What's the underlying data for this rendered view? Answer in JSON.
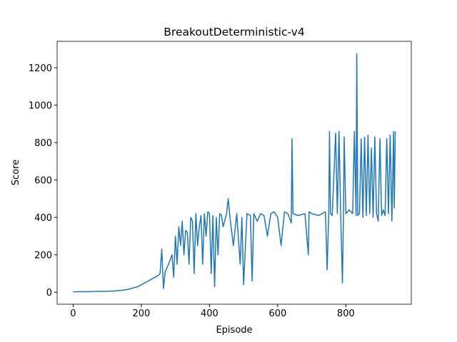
{
  "chart_data": {
    "type": "line",
    "title": "BreakoutDeterministic-v4",
    "x_label": "Episode",
    "y_label": "Score",
    "x": [
      0,
      20,
      40,
      60,
      80,
      100,
      120,
      140,
      160,
      170,
      180,
      190,
      200,
      210,
      220,
      230,
      240,
      250,
      255,
      260,
      265,
      270,
      280,
      290,
      295,
      300,
      305,
      310,
      315,
      320,
      325,
      330,
      335,
      340,
      345,
      350,
      355,
      360,
      365,
      370,
      375,
      380,
      385,
      390,
      395,
      400,
      405,
      410,
      415,
      420,
      425,
      430,
      435,
      440,
      450,
      455,
      460,
      470,
      480,
      490,
      495,
      500,
      510,
      520,
      525,
      530,
      540,
      550,
      560,
      570,
      580,
      590,
      600,
      610,
      620,
      630,
      640,
      642,
      645,
      660,
      680,
      690,
      692,
      700,
      720,
      740,
      745,
      750,
      752,
      755,
      760,
      770,
      775,
      780,
      785,
      790,
      793,
      795,
      800,
      810,
      820,
      825,
      830,
      832,
      835,
      840,
      845,
      850,
      855,
      860,
      865,
      870,
      875,
      880,
      885,
      890,
      895,
      900,
      905,
      910,
      915,
      920,
      925,
      930,
      935,
      940,
      942,
      945
    ],
    "series": [
      {
        "color": "#1f77b4",
        "values": [
          2,
          3,
          3,
          4,
          5,
          5,
          7,
          10,
          15,
          20,
          25,
          30,
          40,
          50,
          60,
          70,
          80,
          90,
          100,
          230,
          20,
          110,
          150,
          200,
          80,
          300,
          150,
          350,
          250,
          380,
          200,
          330,
          320,
          150,
          400,
          380,
          100,
          420,
          250,
          350,
          410,
          150,
          420,
          300,
          430,
          420,
          100,
          410,
          30,
          400,
          200,
          420,
          410,
          350,
          420,
          500,
          400,
          250,
          420,
          150,
          400,
          40,
          420,
          410,
          60,
          420,
          380,
          420,
          410,
          300,
          420,
          430,
          400,
          250,
          430,
          420,
          370,
          820,
          420,
          410,
          420,
          200,
          430,
          420,
          410,
          430,
          120,
          430,
          860,
          420,
          410,
          850,
          420,
          860,
          400,
          50,
          410,
          830,
          420,
          440,
          420,
          860,
          410,
          1275,
          410,
          420,
          820,
          400,
          830,
          410,
          840,
          420,
          770,
          400,
          830,
          420,
          380,
          820,
          410,
          440,
          410,
          820,
          420,
          840,
          380,
          860,
          450,
          860
        ]
      }
    ],
    "xlim": [
      -47,
      992
    ],
    "ylim": [
      -64,
      1341
    ],
    "xticks": [
      0,
      200,
      400,
      600,
      800
    ],
    "yticks": [
      0,
      200,
      400,
      600,
      800,
      1000,
      1200
    ]
  }
}
